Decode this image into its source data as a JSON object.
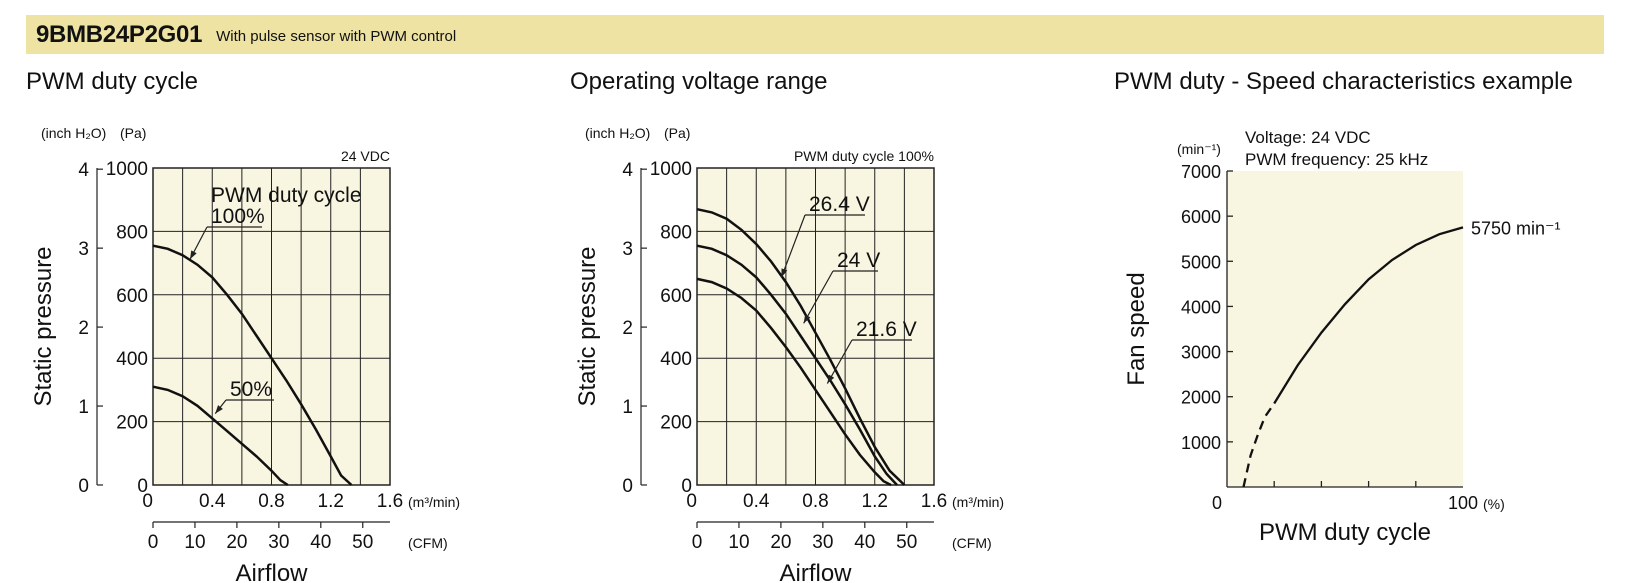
{
  "header": {
    "model": "9BMB24P2G01",
    "description": "With pulse sensor with PWM control"
  },
  "sections": [
    {
      "title": "PWM duty cycle"
    },
    {
      "title": "Operating voltage range"
    },
    {
      "title": "PWM duty - Speed characteristics example"
    }
  ],
  "colors": {
    "banner": "#eee3a3",
    "plot_area": "#f8f5e0",
    "grid": "#222222",
    "curve": "#111111"
  },
  "chart_data": [
    {
      "type": "line",
      "title": "PWM duty cycle",
      "note": "24 VDC",
      "legend_title": "PWM duty cycle",
      "xlabel": "Airflow",
      "ylabel": "Static pressure",
      "x_unit": "(m³/min)",
      "x2_unit": "(CFM)",
      "y_unit": "(Pa)",
      "y2_unit": "(inch H₂O)",
      "xlim": [
        0,
        1.6
      ],
      "ylim": [
        0,
        1000
      ],
      "x_ticks": [
        "0",
        "0.4",
        "0.8",
        "1.2",
        "1.6"
      ],
      "y_ticks": [
        "0",
        "200",
        "400",
        "600",
        "800",
        "1000"
      ],
      "y2_ticks": [
        "0",
        "1",
        "2",
        "3",
        "4"
      ],
      "x2_ticks": [
        "0",
        "10",
        "20",
        "30",
        "40",
        "50"
      ],
      "x2_per_x": 35.31,
      "y2_per_y": 0.004015,
      "grid": true,
      "series": [
        {
          "name": "100%",
          "x": [
            0,
            0.1,
            0.2,
            0.3,
            0.4,
            0.5,
            0.6,
            0.7,
            0.8,
            0.9,
            1.0,
            1.1,
            1.2,
            1.27,
            1.34
          ],
          "y": [
            755,
            745,
            725,
            695,
            655,
            600,
            540,
            470,
            400,
            330,
            255,
            175,
            90,
            30,
            0
          ]
        },
        {
          "name": "50%",
          "x": [
            0,
            0.1,
            0.2,
            0.3,
            0.4,
            0.5,
            0.6,
            0.7,
            0.8,
            0.86,
            0.91
          ],
          "y": [
            310,
            300,
            280,
            250,
            210,
            170,
            130,
            90,
            45,
            15,
            0
          ]
        }
      ]
    },
    {
      "type": "line",
      "title": "Operating voltage range",
      "note": "PWM duty cycle 100%",
      "xlabel": "Airflow",
      "ylabel": "Static pressure",
      "x_unit": "(m³/min)",
      "x2_unit": "(CFM)",
      "y_unit": "(Pa)",
      "y2_unit": "(inch H₂O)",
      "xlim": [
        0,
        1.6
      ],
      "ylim": [
        0,
        1000
      ],
      "x_ticks": [
        "0",
        "0.4",
        "0.8",
        "1.2",
        "1.6"
      ],
      "y_ticks": [
        "0",
        "200",
        "400",
        "600",
        "800",
        "1000"
      ],
      "y2_ticks": [
        "0",
        "1",
        "2",
        "3",
        "4"
      ],
      "x2_ticks": [
        "0",
        "10",
        "20",
        "30",
        "40",
        "50"
      ],
      "x2_per_x": 35.31,
      "y2_per_y": 0.004015,
      "grid": true,
      "series": [
        {
          "name": "26.4 V",
          "x": [
            0,
            0.1,
            0.2,
            0.3,
            0.4,
            0.5,
            0.6,
            0.7,
            0.8,
            0.9,
            1.0,
            1.1,
            1.2,
            1.3,
            1.4
          ],
          "y": [
            870,
            860,
            840,
            805,
            760,
            705,
            640,
            565,
            480,
            395,
            305,
            210,
            120,
            45,
            0
          ]
        },
        {
          "name": "24 V",
          "x": [
            0,
            0.1,
            0.2,
            0.3,
            0.4,
            0.5,
            0.6,
            0.7,
            0.8,
            0.9,
            1.0,
            1.1,
            1.2,
            1.28,
            1.35
          ],
          "y": [
            755,
            745,
            725,
            695,
            655,
            600,
            540,
            470,
            400,
            330,
            255,
            175,
            90,
            35,
            0
          ]
        },
        {
          "name": "21.6 V",
          "x": [
            0,
            0.1,
            0.2,
            0.3,
            0.4,
            0.5,
            0.6,
            0.7,
            0.8,
            0.9,
            1.0,
            1.1,
            1.2,
            1.26,
            1.31
          ],
          "y": [
            650,
            640,
            620,
            590,
            550,
            495,
            435,
            370,
            300,
            230,
            160,
            95,
            40,
            12,
            0
          ]
        }
      ]
    },
    {
      "type": "line",
      "title": "PWM duty - Speed characteristics example",
      "info": [
        "Voltage: 24 VDC",
        "PWM frequency: 25 kHz"
      ],
      "xlabel": "PWM duty cycle",
      "ylabel": "Fan speed",
      "x_unit": "(%)",
      "y_unit": "(min⁻¹)",
      "xlim": [
        0,
        100
      ],
      "ylim": [
        0,
        7000
      ],
      "x_ticks": [
        "0",
        "100"
      ],
      "y_ticks": [
        "1000",
        "2000",
        "3000",
        "4000",
        "5000",
        "6000",
        "7000"
      ],
      "grid": false,
      "end_label": "5750 min⁻¹",
      "series": [
        {
          "name": "",
          "x": [
            20,
            30,
            40,
            50,
            60,
            70,
            80,
            90,
            100
          ],
          "y": [
            1850,
            2700,
            3420,
            4050,
            4600,
            5030,
            5360,
            5600,
            5750
          ]
        }
      ],
      "dashed_segment": {
        "x": [
          7,
          10,
          13,
          16,
          20
        ],
        "y": [
          0,
          700,
          1150,
          1550,
          1850
        ]
      }
    }
  ]
}
